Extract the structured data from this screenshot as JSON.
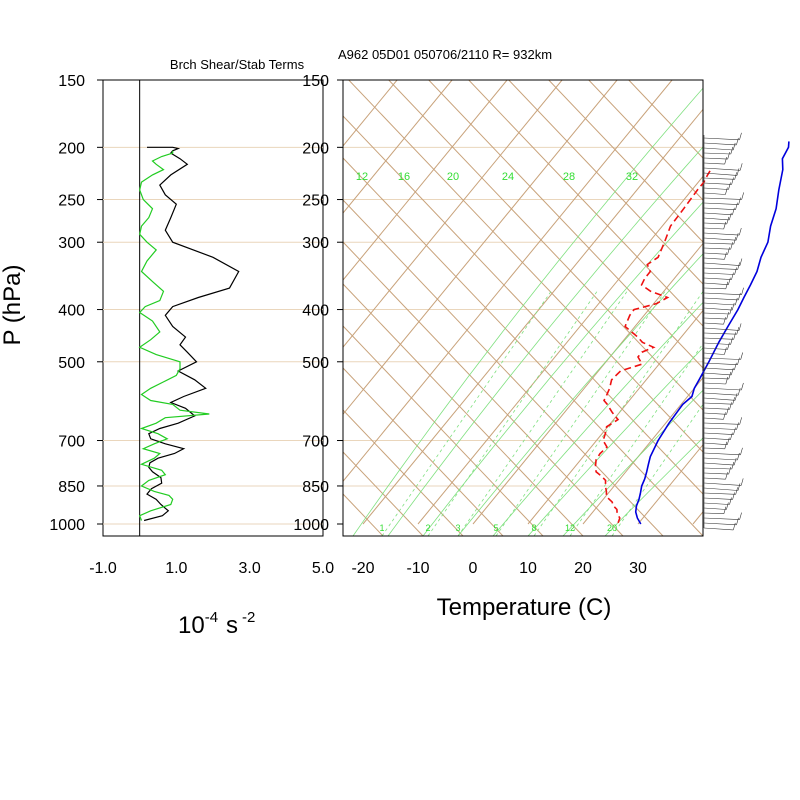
{
  "header": {
    "left_title": "Brch Shear/Stab Terms",
    "right_title": "A962 05D01 050706/2110 R= 932km"
  },
  "left_panel": {
    "ylabel": "P (hPa)",
    "xunit": {
      "base": "10",
      "exp1": "-4",
      "unit": "s",
      "exp2": "-2"
    }
  },
  "right_panel": {
    "xlabel": "Temperature (C)",
    "mixing_ratio_labels": [
      "1",
      "2",
      "3",
      "5",
      "8",
      "12",
      "20"
    ],
    "theta_e_labels": [
      "12",
      "16",
      "20",
      "24",
      "28",
      "32"
    ]
  },
  "colors": {
    "isobar": "#ead6bc",
    "skew_grid": "#c8a27a",
    "mixing_ratio": "#7fe07f",
    "theta_label": "#33dd33",
    "temperature": "#0000dd",
    "dewpoint": "#ee1111",
    "shear_term": "#000000",
    "stab_term": "#22cc22",
    "wind_barb": "#333333"
  },
  "chart_data": [
    {
      "type": "line",
      "panel": "left",
      "title": "Brch Shear/Stab Terms",
      "xlabel": "10^-4 s^-2",
      "ylabel": "P (hPa)",
      "x_ticks": [
        "-1.0",
        "1.0",
        "3.0",
        "5.0"
      ],
      "xlim": [
        -1.0,
        5.0
      ],
      "y_ticks": [
        "150",
        "200",
        "250",
        "300",
        "400",
        "500",
        "700",
        "850",
        "1000"
      ],
      "ylim": [
        1000,
        150
      ],
      "y_scale": "log",
      "series": [
        {
          "color": "black",
          "x": [
            0.12,
            0.62,
            0.78,
            0.58,
            0.45,
            0.2,
            0.32,
            0.6,
            0.58,
            0.35,
            0.25,
            0.28,
            0.5,
            0.95,
            1.2,
            0.7,
            0.3,
            0.25,
            0.55,
            1.05,
            1.5,
            1.25,
            0.85,
            1.2,
            1.8,
            1.5,
            1.05,
            1.55,
            1.3,
            1.1,
            1.25,
            0.9,
            0.7,
            0.9,
            1.6,
            2.45,
            2.7,
            2.0,
            0.9,
            0.7,
            0.85,
            1.0,
            0.7,
            0.55,
            0.85,
            1.3,
            1.1,
            0.85,
            0.9,
            1.05,
            0.9,
            0.2
          ],
          "y": [
            985,
            965,
            945,
            920,
            900,
            880,
            860,
            840,
            820,
            800,
            785,
            770,
            755,
            740,
            725,
            710,
            695,
            680,
            665,
            650,
            630,
            610,
            595,
            580,
            560,
            540,
            520,
            500,
            480,
            465,
            450,
            430,
            410,
            395,
            380,
            365,
            340,
            320,
            300,
            285,
            270,
            255,
            245,
            235,
            225,
            215,
            210,
            205,
            203,
            201,
            200,
            200
          ]
        },
        {
          "color": "green",
          "x": [
            0.05,
            0.0,
            0.3,
            0.85,
            0.9,
            0.8,
            0.4,
            0.05,
            0.25,
            0.7,
            0.6,
            0.05,
            0.4,
            0.55,
            0.1,
            0.4,
            0.75,
            0.5,
            0.05,
            0.45,
            0.7,
            1.9,
            1.1,
            0.9,
            0.3,
            0.05,
            0.3,
            0.65,
            1.0,
            1.1,
            1.1,
            0.45,
            0.0,
            0.3,
            0.55,
            0.35,
            0.0,
            0.15,
            0.55,
            0.65,
            0.35,
            0.05,
            0.2,
            0.45,
            0.2,
            0.0,
            0.05,
            0.25,
            0.35,
            0.1,
            0.0,
            0.05,
            0.35,
            0.65,
            0.45,
            0.35,
            0.6,
            0.9,
            0.9
          ],
          "y": [
            985,
            965,
            945,
            920,
            900,
            885,
            870,
            850,
            830,
            810,
            795,
            775,
            755,
            740,
            725,
            710,
            695,
            680,
            665,
            650,
            635,
            625,
            615,
            600,
            590,
            575,
            560,
            545,
            530,
            515,
            500,
            485,
            470,
            455,
            440,
            420,
            405,
            395,
            385,
            370,
            355,
            340,
            325,
            310,
            300,
            290,
            280,
            270,
            260,
            250,
            240,
            232,
            225,
            220,
            215,
            212,
            208,
            205,
            203
          ]
        }
      ]
    },
    {
      "type": "line",
      "panel": "right",
      "subtype": "skew-T log-P",
      "xlabel": "Temperature (C)",
      "x_ticks": [
        "-20",
        "-10",
        "0",
        "10",
        "20",
        "30"
      ],
      "xlim": [
        -23,
        42
      ],
      "y_ticks": [
        "150",
        "200",
        "250",
        "300",
        "400",
        "500",
        "700",
        "850",
        "1000"
      ],
      "ylim": [
        1000,
        150
      ],
      "y_scale": "log",
      "grid": true,
      "series": [
        {
          "color": "blue",
          "style": "solid",
          "p": [
            1000,
            975,
            950,
            925,
            900,
            875,
            850,
            825,
            800,
            775,
            750,
            700,
            650,
            600,
            580,
            560,
            540,
            500,
            460,
            430,
            400,
            380,
            360,
            340,
            320,
            300,
            280,
            260,
            240,
            220,
            210,
            200,
            195
          ],
          "x": [
            30.5,
            29.0,
            27.8,
            27.0,
            26.5,
            25.8,
            25.0,
            24.5,
            23.8,
            23.0,
            22.2,
            21.2,
            20.6,
            20.3,
            20.8,
            20.0,
            19.6,
            18.7,
            17.6,
            16.9,
            16.2,
            15.5,
            14.8,
            14.0,
            12.6,
            11.6,
            9.7,
            8.1,
            5.8,
            3.5,
            1.8,
            1.2,
            0.4
          ]
        },
        {
          "color": "red",
          "style": "dashed",
          "p": [
            995,
            975,
            955,
            940,
            925,
            910,
            890,
            870,
            850,
            830,
            815,
            800,
            780,
            760,
            740,
            720,
            700,
            680,
            660,
            640,
            620,
            600,
            590,
            580,
            560,
            540,
            520,
            505,
            490,
            480,
            470,
            460,
            450,
            430,
            410,
            400,
            390,
            380,
            370,
            360,
            350,
            340,
            330,
            320,
            300,
            280,
            260,
            240,
            232,
            225,
            220
          ],
          "x": [
            26.2,
            25.8,
            24.6,
            24.0,
            22.8,
            22.0,
            20.2,
            19.4,
            18.4,
            17.6,
            16.2,
            14.6,
            13.6,
            12.8,
            12.6,
            12.9,
            11.2,
            10.6,
            9.8,
            10.8,
            8.6,
            6.6,
            5.4,
            5.2,
            4.6,
            3.7,
            4.0,
            6.9,
            5.1,
            5.1,
            6.5,
            3.7,
            2.1,
            -1.8,
            -2.6,
            -2.7,
            0.5,
            1.6,
            -2.4,
            -5.0,
            -5.4,
            -5.4,
            -7.0,
            -6.1,
            -7.2,
            -8.5,
            -8.7,
            -9.0,
            -9.0,
            -9.4,
            -9.6
          ]
        }
      ]
    }
  ]
}
